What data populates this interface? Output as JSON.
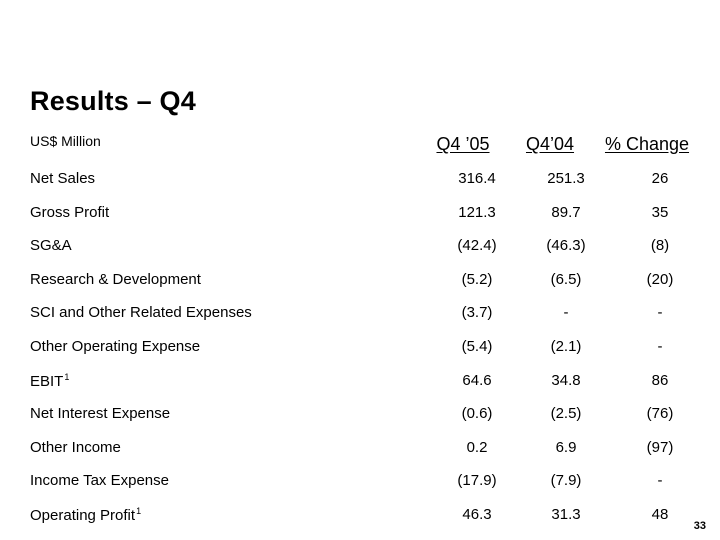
{
  "title": "Results – Q4",
  "unit_label": "US$ Million",
  "columns": [
    "Q4 ’05",
    "Q4’04",
    "% Change"
  ],
  "rows": [
    {
      "label": "Net Sales",
      "sup": "",
      "q4_05": "316.4",
      "q4_04": "251.3",
      "change": "26"
    },
    {
      "label": "Gross Profit",
      "sup": "",
      "q4_05": "121.3",
      "q4_04": "89.7",
      "change": "35"
    },
    {
      "label": "SG&A",
      "sup": "",
      "q4_05": "(42.4)",
      "q4_04": "(46.3)",
      "change": "(8)"
    },
    {
      "label": "Research & Development",
      "sup": "",
      "q4_05": "(5.2)",
      "q4_04": "(6.5)",
      "change": "(20)"
    },
    {
      "label": "SCI and Other Related Expenses",
      "sup": "",
      "q4_05": "(3.7)",
      "q4_04": "-",
      "change": "-"
    },
    {
      "label": "Other Operating Expense",
      "sup": "",
      "q4_05": "(5.4)",
      "q4_04": "(2.1)",
      "change": "-"
    },
    {
      "label": "EBIT",
      "sup": "1",
      "q4_05": "64.6",
      "q4_04": "34.8",
      "change": "86"
    },
    {
      "label": "Net Interest Expense",
      "sup": "",
      "q4_05": "(0.6)",
      "q4_04": "(2.5)",
      "change": "(76)"
    },
    {
      "label": "Other Income",
      "sup": "",
      "q4_05": "0.2",
      "q4_04": "6.9",
      "change": "(97)"
    },
    {
      "label": "Income Tax Expense",
      "sup": "",
      "q4_05": "(17.9)",
      "q4_04": "(7.9)",
      "change": "-"
    },
    {
      "label": "Operating Profit",
      "sup": "1",
      "q4_05": "46.3",
      "q4_04": "31.3",
      "change": "48"
    }
  ],
  "page_number": "33"
}
